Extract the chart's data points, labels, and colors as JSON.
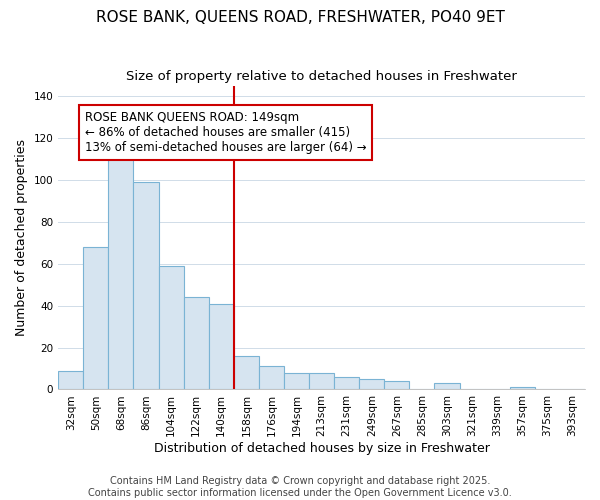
{
  "title": "ROSE BANK, QUEENS ROAD, FRESHWATER, PO40 9ET",
  "subtitle": "Size of property relative to detached houses in Freshwater",
  "xlabel": "Distribution of detached houses by size in Freshwater",
  "ylabel": "Number of detached properties",
  "categories": [
    "32sqm",
    "50sqm",
    "68sqm",
    "86sqm",
    "104sqm",
    "122sqm",
    "140sqm",
    "158sqm",
    "176sqm",
    "194sqm",
    "213sqm",
    "231sqm",
    "249sqm",
    "267sqm",
    "285sqm",
    "303sqm",
    "321sqm",
    "339sqm",
    "357sqm",
    "375sqm",
    "393sqm"
  ],
  "values": [
    9,
    68,
    113,
    99,
    59,
    44,
    41,
    16,
    11,
    8,
    8,
    6,
    5,
    4,
    0,
    3,
    0,
    0,
    1,
    0,
    0
  ],
  "bar_color": "#d6e4f0",
  "bar_edge_color": "#7ab3d4",
  "reference_line_index": 7,
  "reference_line_color": "#cc0000",
  "annotation_box_text": "ROSE BANK QUEENS ROAD: 149sqm\n← 86% of detached houses are smaller (415)\n13% of semi-detached houses are larger (64) →",
  "ylim": [
    0,
    145
  ],
  "yticks": [
    0,
    20,
    40,
    60,
    80,
    100,
    120,
    140
  ],
  "bg_color": "#ffffff",
  "grid_color": "#d0dce8",
  "footer_text": "Contains HM Land Registry data © Crown copyright and database right 2025.\nContains public sector information licensed under the Open Government Licence v3.0.",
  "title_fontsize": 11,
  "subtitle_fontsize": 9.5,
  "xlabel_fontsize": 9,
  "ylabel_fontsize": 9,
  "tick_fontsize": 7.5,
  "annotation_fontsize": 8.5,
  "footer_fontsize": 7
}
